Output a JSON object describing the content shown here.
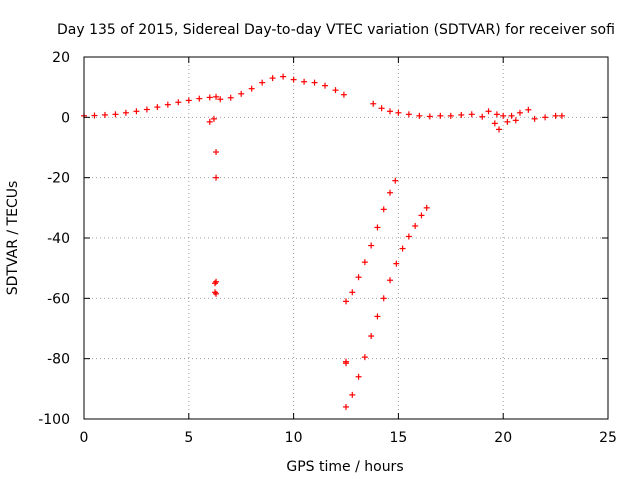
{
  "chart_data": {
    "type": "scatter",
    "title": "Day 135 of 2015, Sidereal Day-to-day VTEC variation (SDTVAR) for receiver sofi",
    "xlabel": "GPS time / hours",
    "ylabel": "SDTVAR / TECUs",
    "xlim": [
      0,
      25
    ],
    "ylim": [
      -100,
      20
    ],
    "xticks": [
      0,
      5,
      10,
      15,
      20,
      25
    ],
    "yticks": [
      -100,
      -80,
      -60,
      -40,
      -20,
      0,
      20
    ],
    "xtick_labels": [
      "0",
      "5",
      "10",
      "15",
      "20",
      "25"
    ],
    "ytick_labels": [
      "-100",
      "-80",
      "-60",
      "-40",
      "-20",
      "0",
      "20"
    ],
    "grid": true,
    "marker": "+",
    "color": "#ff0000",
    "series": [
      {
        "values": [
          [
            0.0,
            0.5
          ],
          [
            0.5,
            0.6
          ],
          [
            1.0,
            0.8
          ],
          [
            1.5,
            1.0
          ],
          [
            2.0,
            1.5
          ],
          [
            2.5,
            2.0
          ],
          [
            3.0,
            2.6
          ],
          [
            3.5,
            3.4
          ],
          [
            4.0,
            4.2
          ],
          [
            4.5,
            5.0
          ],
          [
            5.0,
            5.6
          ],
          [
            5.5,
            6.2
          ],
          [
            6.0,
            6.6
          ],
          [
            6.3,
            6.8
          ],
          [
            6.5,
            6.0
          ],
          [
            7.0,
            6.5
          ],
          [
            7.5,
            7.8
          ],
          [
            8.0,
            9.5
          ],
          [
            8.5,
            11.5
          ],
          [
            9.0,
            13.0
          ],
          [
            9.5,
            13.5
          ],
          [
            10.0,
            12.5
          ],
          [
            10.5,
            11.8
          ],
          [
            11.0,
            11.5
          ],
          [
            11.5,
            10.5
          ],
          [
            12.0,
            9.0
          ],
          [
            12.4,
            7.5
          ],
          [
            13.8,
            4.5
          ],
          [
            14.2,
            3.0
          ],
          [
            14.6,
            2.0
          ],
          [
            15.0,
            1.5
          ],
          [
            15.5,
            1.0
          ],
          [
            16.0,
            0.5
          ],
          [
            16.5,
            0.3
          ],
          [
            17.0,
            0.5
          ],
          [
            17.5,
            0.5
          ],
          [
            18.0,
            0.8
          ],
          [
            18.5,
            1.0
          ],
          [
            19.0,
            0.2
          ],
          [
            19.3,
            2.0
          ],
          [
            19.7,
            1.0
          ],
          [
            20.0,
            0.5
          ],
          [
            20.4,
            0.5
          ],
          [
            20.8,
            1.5
          ],
          [
            21.2,
            2.5
          ],
          [
            19.6,
            -2.0
          ],
          [
            19.8,
            -4.0
          ],
          [
            20.2,
            -1.5
          ],
          [
            20.6,
            -1.0
          ],
          [
            21.5,
            -0.5
          ],
          [
            22.0,
            0.0
          ],
          [
            22.5,
            0.5
          ],
          [
            22.8,
            0.5
          ],
          [
            6.0,
            -1.5
          ],
          [
            6.2,
            -0.5
          ],
          [
            6.3,
            -11.5
          ],
          [
            6.3,
            -20.0
          ],
          [
            6.3,
            -54.5
          ],
          [
            6.3,
            -58.5
          ],
          [
            6.25,
            -55.0
          ],
          [
            6.25,
            -58.0
          ],
          [
            12.5,
            -81.0
          ],
          [
            12.5,
            -81.5
          ],
          [
            12.5,
            -61.0
          ],
          [
            12.8,
            -58.0
          ],
          [
            13.1,
            -53.0
          ],
          [
            13.4,
            -48.0
          ],
          [
            13.7,
            -42.5
          ],
          [
            14.0,
            -36.5
          ],
          [
            14.3,
            -30.5
          ],
          [
            14.6,
            -25.0
          ],
          [
            14.85,
            -21.0
          ],
          [
            12.5,
            -96.0
          ],
          [
            12.8,
            -92.0
          ],
          [
            13.1,
            -86.0
          ],
          [
            13.4,
            -79.5
          ],
          [
            13.7,
            -72.5
          ],
          [
            14.0,
            -66.0
          ],
          [
            14.3,
            -60.0
          ],
          [
            14.6,
            -54.0
          ],
          [
            14.9,
            -48.5
          ],
          [
            15.2,
            -43.5
          ],
          [
            15.5,
            -39.5
          ],
          [
            15.8,
            -36.0
          ],
          [
            16.1,
            -32.5
          ],
          [
            16.35,
            -30.0
          ]
        ]
      }
    ]
  }
}
